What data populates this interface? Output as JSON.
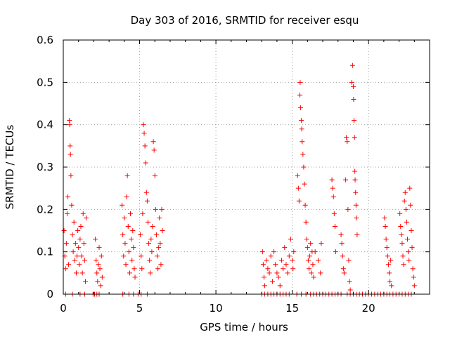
{
  "chart_data": {
    "type": "scatter",
    "title": "Day 303 of 2016, SRMTID for receiver esqu",
    "xlabel": "GPS time / hours",
    "ylabel": "SRMTID / TECUs",
    "xlim": [
      0,
      24
    ],
    "ylim": [
      0,
      0.6
    ],
    "x_ticks": [
      0,
      5,
      10,
      15,
      20
    ],
    "x_tick_labels": [
      "0",
      "5",
      "10",
      "15",
      "20"
    ],
    "y_ticks": [
      0,
      0.1,
      0.2,
      0.3,
      0.4,
      0.5,
      0.6
    ],
    "y_tick_labels": [
      "0",
      "0.1",
      "0.2",
      "0.3",
      "0.4",
      "0.5",
      "0.6"
    ],
    "grid": true,
    "marker": "+",
    "colors": {
      "marker": "#ff0000"
    },
    "series": [
      {
        "name": "esqu",
        "points": [
          [
            0.05,
            0.15
          ],
          [
            0.1,
            0.09
          ],
          [
            0.15,
            0.06
          ],
          [
            0.2,
            0.12
          ],
          [
            0.25,
            0.19
          ],
          [
            0.3,
            0.23
          ],
          [
            0.35,
            0.07
          ],
          [
            0.4,
            0.41
          ],
          [
            0.42,
            0.4
          ],
          [
            0.45,
            0.35
          ],
          [
            0.47,
            0.33
          ],
          [
            0.5,
            0.28
          ],
          [
            0.55,
            0.21
          ],
          [
            0.6,
            0.14
          ],
          [
            0.65,
            0.1
          ],
          [
            0.7,
            0.17
          ],
          [
            0.75,
            0.08
          ],
          [
            0.8,
            0.12
          ],
          [
            0.85,
            0.05
          ],
          [
            0.9,
            0.09
          ],
          [
            0.95,
            0.15
          ],
          [
            1.0,
            0.11
          ],
          [
            1.05,
            0.07
          ],
          [
            1.1,
            0.13
          ],
          [
            1.15,
            0.16
          ],
          [
            1.2,
            0.09
          ],
          [
            1.25,
            0.05
          ],
          [
            1.3,
            0.19
          ],
          [
            1.35,
            0.12
          ],
          [
            1.4,
            0.08
          ],
          [
            1.45,
            0.03
          ],
          [
            1.5,
            0.18
          ],
          [
            0.15,
            0.0
          ],
          [
            0.6,
            0.0
          ],
          [
            1.1,
            0.0
          ],
          [
            1.4,
            0.0
          ],
          [
            2.1,
            0.13
          ],
          [
            2.15,
            0.08
          ],
          [
            2.2,
            0.05
          ],
          [
            2.25,
            0.03
          ],
          [
            2.3,
            0.07
          ],
          [
            2.35,
            0.11
          ],
          [
            2.4,
            0.06
          ],
          [
            2.45,
            0.02
          ],
          [
            2.5,
            0.09
          ],
          [
            2.55,
            0.04
          ],
          [
            1.95,
            0.0
          ],
          [
            2.05,
            0.0
          ],
          [
            2.2,
            0.0
          ],
          [
            2.35,
            0.0
          ],
          [
            3.85,
            0.21
          ],
          [
            3.9,
            0.14
          ],
          [
            3.95,
            0.09
          ],
          [
            4.0,
            0.18
          ],
          [
            4.05,
            0.12
          ],
          [
            4.1,
            0.07
          ],
          [
            4.15,
            0.23
          ],
          [
            4.2,
            0.28
          ],
          [
            4.25,
            0.16
          ],
          [
            4.3,
            0.1
          ],
          [
            4.35,
            0.05
          ],
          [
            4.4,
            0.19
          ],
          [
            4.45,
            0.13
          ],
          [
            4.5,
            0.08
          ],
          [
            4.55,
            0.15
          ],
          [
            4.6,
            0.11
          ],
          [
            4.65,
            0.06
          ],
          [
            4.7,
            0.04
          ],
          [
            3.9,
            0.0
          ],
          [
            4.3,
            0.0
          ],
          [
            4.6,
            0.0
          ],
          [
            4.9,
            0.0
          ],
          [
            5.05,
            0.14
          ],
          [
            5.1,
            0.09
          ],
          [
            5.15,
            0.06
          ],
          [
            5.2,
            0.19
          ],
          [
            5.25,
            0.4
          ],
          [
            5.3,
            0.38
          ],
          [
            5.35,
            0.35
          ],
          [
            5.4,
            0.31
          ],
          [
            5.45,
            0.24
          ],
          [
            5.5,
            0.22
          ],
          [
            5.55,
            0.17
          ],
          [
            5.6,
            0.12
          ],
          [
            5.65,
            0.08
          ],
          [
            5.7,
            0.05
          ],
          [
            5.75,
            0.13
          ],
          [
            5.8,
            0.1
          ],
          [
            5.85,
            0.16
          ],
          [
            5.9,
            0.36
          ],
          [
            5.95,
            0.34
          ],
          [
            6.0,
            0.28
          ],
          [
            6.05,
            0.2
          ],
          [
            6.1,
            0.14
          ],
          [
            6.15,
            0.09
          ],
          [
            6.2,
            0.06
          ],
          [
            6.25,
            0.11
          ],
          [
            6.3,
            0.18
          ],
          [
            6.35,
            0.12
          ],
          [
            6.4,
            0.07
          ],
          [
            6.45,
            0.2
          ],
          [
            6.5,
            0.15
          ],
          [
            5.1,
            0.0
          ],
          [
            5.5,
            0.0
          ],
          [
            13.05,
            0.1
          ],
          [
            13.1,
            0.07
          ],
          [
            13.15,
            0.04
          ],
          [
            13.2,
            0.02
          ],
          [
            13.3,
            0.08
          ],
          [
            13.4,
            0.06
          ],
          [
            13.5,
            0.05
          ],
          [
            13.6,
            0.09
          ],
          [
            13.7,
            0.03
          ],
          [
            13.8,
            0.1
          ],
          [
            13.9,
            0.07
          ],
          [
            14.0,
            0.05
          ],
          [
            14.1,
            0.04
          ],
          [
            14.2,
            0.02
          ],
          [
            14.3,
            0.08
          ],
          [
            14.4,
            0.06
          ],
          [
            14.5,
            0.11
          ],
          [
            14.6,
            0.07
          ],
          [
            14.7,
            0.05
          ],
          [
            14.8,
            0.09
          ],
          [
            14.9,
            0.13
          ],
          [
            15.0,
            0.08
          ],
          [
            15.05,
            0.06
          ],
          [
            15.1,
            0.1
          ],
          [
            13.0,
            0.0
          ],
          [
            13.2,
            0.0
          ],
          [
            13.4,
            0.0
          ],
          [
            13.6,
            0.0
          ],
          [
            13.8,
            0.0
          ],
          [
            14.0,
            0.0
          ],
          [
            14.2,
            0.0
          ],
          [
            14.4,
            0.0
          ],
          [
            14.6,
            0.0
          ],
          [
            14.8,
            0.0
          ],
          [
            15.35,
            0.28
          ],
          [
            15.4,
            0.25
          ],
          [
            15.45,
            0.22
          ],
          [
            15.5,
            0.47
          ],
          [
            15.52,
            0.5
          ],
          [
            15.55,
            0.44
          ],
          [
            15.6,
            0.41
          ],
          [
            15.62,
            0.39
          ],
          [
            15.65,
            0.36
          ],
          [
            15.7,
            0.33
          ],
          [
            15.75,
            0.3
          ],
          [
            15.8,
            0.26
          ],
          [
            15.85,
            0.21
          ],
          [
            15.9,
            0.17
          ],
          [
            15.95,
            0.13
          ],
          [
            16.0,
            0.11
          ],
          [
            16.05,
            0.08
          ],
          [
            16.1,
            0.06
          ],
          [
            16.15,
            0.09
          ],
          [
            16.2,
            0.12
          ],
          [
            16.25,
            0.05
          ],
          [
            16.3,
            0.1
          ],
          [
            16.35,
            0.07
          ],
          [
            16.4,
            0.04
          ],
          [
            15.3,
            0.0
          ],
          [
            15.6,
            0.0
          ],
          [
            15.9,
            0.0
          ],
          [
            16.2,
            0.0
          ],
          [
            16.5,
            0.1
          ],
          [
            16.7,
            0.08
          ],
          [
            16.85,
            0.05
          ],
          [
            16.9,
            0.12
          ],
          [
            16.4,
            0.0
          ],
          [
            16.6,
            0.0
          ],
          [
            16.8,
            0.0
          ],
          [
            17.0,
            0.0
          ],
          [
            17.2,
            0.0
          ],
          [
            17.4,
            0.0
          ],
          [
            17.6,
            0.27
          ],
          [
            17.65,
            0.25
          ],
          [
            17.7,
            0.23
          ],
          [
            17.75,
            0.19
          ],
          [
            17.8,
            0.16
          ],
          [
            17.85,
            0.1
          ],
          [
            17.6,
            0.0
          ],
          [
            17.8,
            0.0
          ],
          [
            18.0,
            0.0
          ],
          [
            18.2,
            0.0
          ],
          [
            18.2,
            0.14
          ],
          [
            18.25,
            0.12
          ],
          [
            18.3,
            0.09
          ],
          [
            18.35,
            0.06
          ],
          [
            18.4,
            0.05
          ],
          [
            18.5,
            0.27
          ],
          [
            18.55,
            0.37
          ],
          [
            18.6,
            0.36
          ],
          [
            18.65,
            0.2
          ],
          [
            18.7,
            0.08
          ],
          [
            18.75,
            0.03
          ],
          [
            18.8,
            0.01
          ],
          [
            18.6,
            0.0
          ],
          [
            18.8,
            0.0
          ],
          [
            18.9,
            0.5
          ],
          [
            18.95,
            0.54
          ],
          [
            19.0,
            0.49
          ],
          [
            19.02,
            0.46
          ],
          [
            19.05,
            0.41
          ],
          [
            19.08,
            0.37
          ],
          [
            19.1,
            0.29
          ],
          [
            19.12,
            0.27
          ],
          [
            19.15,
            0.24
          ],
          [
            19.18,
            0.21
          ],
          [
            19.2,
            0.18
          ],
          [
            19.25,
            0.14
          ],
          [
            19.0,
            0.0
          ],
          [
            19.2,
            0.0
          ],
          [
            19.4,
            0.0
          ],
          [
            19.6,
            0.0
          ],
          [
            19.8,
            0.0
          ],
          [
            20.0,
            0.0
          ],
          [
            20.2,
            0.0
          ],
          [
            20.4,
            0.0
          ],
          [
            20.6,
            0.0
          ],
          [
            20.8,
            0.0
          ],
          [
            21.05,
            0.18
          ],
          [
            21.1,
            0.16
          ],
          [
            21.15,
            0.13
          ],
          [
            21.2,
            0.11
          ],
          [
            21.25,
            0.09
          ],
          [
            21.3,
            0.07
          ],
          [
            21.35,
            0.05
          ],
          [
            21.4,
            0.03
          ],
          [
            21.45,
            0.08
          ],
          [
            21.5,
            0.02
          ],
          [
            21.0,
            0.0
          ],
          [
            21.2,
            0.0
          ],
          [
            21.4,
            0.0
          ],
          [
            21.6,
            0.0
          ],
          [
            21.8,
            0.0
          ],
          [
            22.05,
            0.19
          ],
          [
            22.1,
            0.16
          ],
          [
            22.15,
            0.14
          ],
          [
            22.2,
            0.12
          ],
          [
            22.25,
            0.09
          ],
          [
            22.3,
            0.07
          ],
          [
            22.35,
            0.22
          ],
          [
            22.4,
            0.24
          ],
          [
            22.45,
            0.2
          ],
          [
            22.5,
            0.17
          ],
          [
            22.55,
            0.13
          ],
          [
            22.6,
            0.1
          ],
          [
            22.65,
            0.08
          ],
          [
            22.7,
            0.25
          ],
          [
            22.75,
            0.21
          ],
          [
            22.8,
            0.15
          ],
          [
            22.85,
            0.11
          ],
          [
            22.9,
            0.06
          ],
          [
            22.95,
            0.04
          ],
          [
            23.0,
            0.02
          ],
          [
            22.0,
            0.0
          ],
          [
            22.2,
            0.0
          ],
          [
            22.4,
            0.0
          ],
          [
            22.6,
            0.0
          ],
          [
            22.8,
            0.0
          ]
        ]
      }
    ]
  }
}
